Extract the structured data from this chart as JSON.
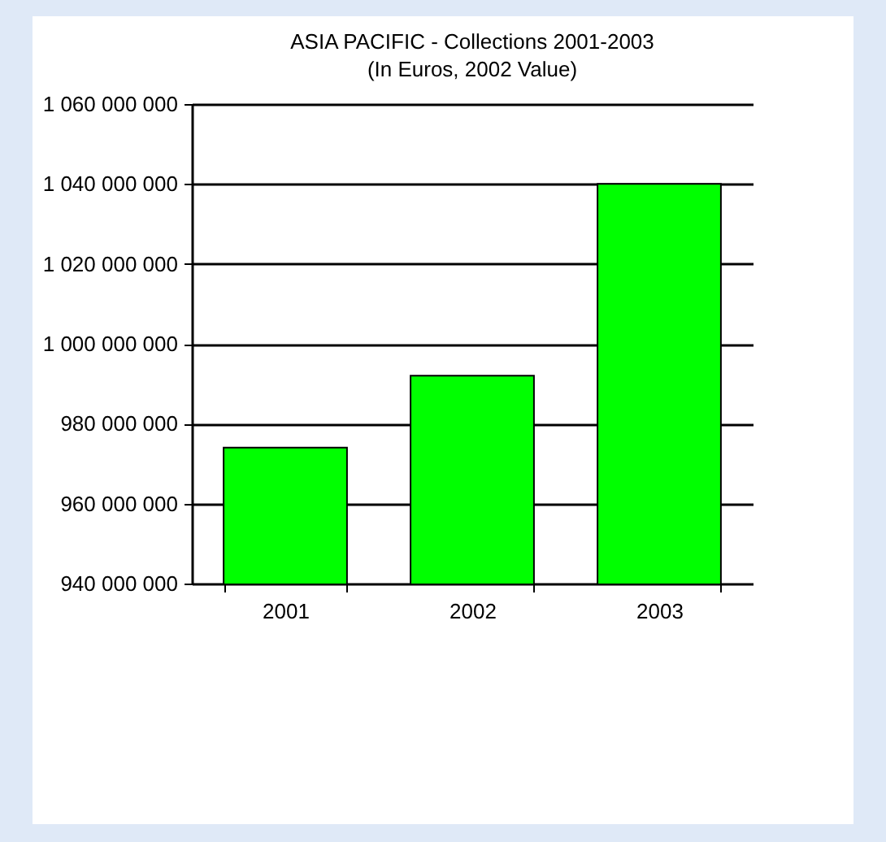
{
  "chart_data": {
    "type": "bar",
    "title": "ASIA PACIFIC  - Collections  2001-2003",
    "subtitle": "(In Euros, 2002 Value)",
    "categories": [
      "2001",
      "2002",
      "2003"
    ],
    "values": [
      974000000,
      992000000,
      1040000000
    ],
    "color": "#00ff00",
    "ylim": [
      940000000,
      1060000000
    ],
    "yticks": [
      {
        "value": 940000000,
        "label": "940 000 000"
      },
      {
        "value": 960000000,
        "label": "960 000 000"
      },
      {
        "value": 980000000,
        "label": "980 000 000"
      },
      {
        "value": 1000000000,
        "label": "1 000 000 000"
      },
      {
        "value": 1020000000,
        "label": "1 020 000 000"
      },
      {
        "value": 1040000000,
        "label": "1 040 000 000"
      },
      {
        "value": 1060000000,
        "label": "1 060 000 000"
      }
    ],
    "grid": "y"
  }
}
